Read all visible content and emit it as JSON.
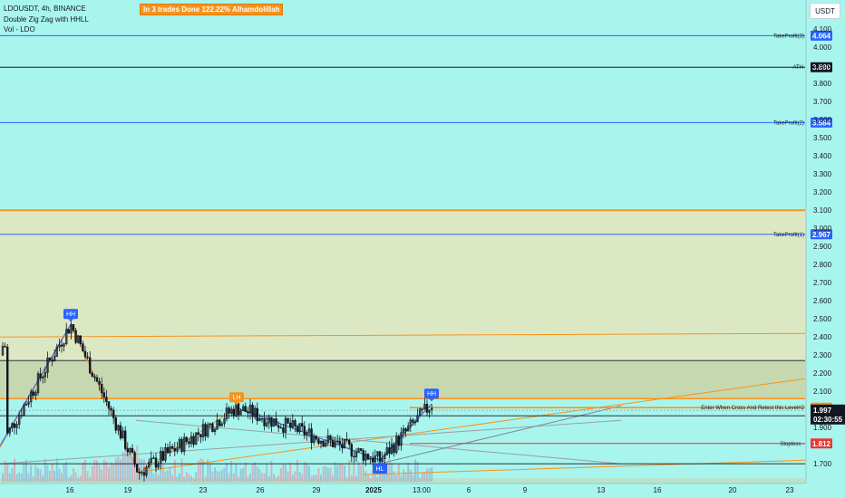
{
  "header": {
    "symbol_line": "LDOUSDT, 4h, BINANCE",
    "indicator_1": "Double Zig Zag with HHLL",
    "indicator_2": "Vol - LDO",
    "banner": "In 3 trades Done 122.22% Alhamdolillah",
    "currency": "USDT"
  },
  "colors": {
    "background": "#a8f5ee",
    "up": "#26a69a",
    "down": "#ef5350",
    "candle": "#131722",
    "takeprofit": "#2962ff",
    "stoploss": "#e53935",
    "orange": "#f7931a",
    "zone": "#dce8c4",
    "zone_dark": "#c6d8b0"
  },
  "chart_data": {
    "type": "candlestick",
    "ylim": [
      1.64,
      4.12
    ],
    "y_ticks": [
      "4.100",
      "4.000",
      "3.900",
      "3.800",
      "3.700",
      "3.600",
      "3.500",
      "3.400",
      "3.300",
      "3.200",
      "3.100",
      "3.000",
      "2.900",
      "2.800",
      "2.700",
      "2.600",
      "2.500",
      "2.400",
      "2.300",
      "2.200",
      "2.100",
      "1.900",
      "1.700"
    ],
    "x_ticks": [
      "16",
      "19",
      "23",
      "26",
      "29",
      "2025",
      "13:00",
      "6",
      "9",
      "13",
      "16",
      "20",
      "23"
    ],
    "x_ticks_bold": [
      "2025"
    ],
    "levels": [
      {
        "name": "TakeProfit(3)",
        "value": 4.064,
        "label": "4.064",
        "color": "#2962ff"
      },
      {
        "name": "ATH",
        "value": 3.89,
        "label": "3.890",
        "color": "#131722"
      },
      {
        "name": "TakeProfit(2)",
        "value": 3.584,
        "label": "3.584",
        "color": "#2962ff"
      },
      {
        "name": "TakeProfit(1)",
        "value": 2.967,
        "label": "2.967",
        "color": "#2962ff"
      },
      {
        "name": "Enter When Cross And Retest this Level#2",
        "value": 2.01,
        "label": "2.010",
        "color": "#f7931a"
      },
      {
        "name": "Stoploss",
        "value": 1.812,
        "label": "1.812",
        "color": "#e53935"
      }
    ],
    "last_price": {
      "value": 1.997,
      "label": "1.997",
      "countdown": "02:30:55"
    },
    "zone": {
      "top": 3.1,
      "bottom": 2.06
    },
    "zone_inner": {
      "top": 2.27,
      "bottom": 2.06
    },
    "markers": [
      {
        "text": "HH",
        "x": 78,
        "value": 2.47,
        "color": "#2962ff",
        "pos": "above"
      },
      {
        "text": "LH",
        "x": 261,
        "value": 2.01,
        "color": "#f7931a",
        "pos": "above"
      },
      {
        "text": "HL",
        "x": 419,
        "value": 1.72,
        "color": "#2962ff",
        "pos": "below"
      },
      {
        "text": "HH",
        "x": 476,
        "value": 2.03,
        "color": "#2962ff",
        "pos": "above"
      }
    ],
    "zigzag": [
      {
        "x": 0,
        "value": 1.79
      },
      {
        "x": 78,
        "value": 2.47
      },
      {
        "x": 153,
        "value": 1.65
      },
      {
        "x": 261,
        "value": 2.01
      },
      {
        "x": 419,
        "value": 1.72
      },
      {
        "x": 476,
        "value": 2.03
      }
    ],
    "trend_lines": [
      {
        "from": {
          "x": 0,
          "value": 2.4
        },
        "to": {
          "x": 888,
          "value": 2.42
        },
        "color": "#f7931a"
      },
      {
        "from": {
          "x": 160,
          "value": 1.66
        },
        "to": {
          "x": 888,
          "value": 2.17
        },
        "color": "#f7931a"
      },
      {
        "from": {
          "x": 400,
          "value": 1.64
        },
        "to": {
          "x": 888,
          "value": 1.72
        },
        "color": "#f7931a"
      },
      {
        "from": {
          "x": 0,
          "value": 1.7
        },
        "to": {
          "x": 685,
          "value": 1.94
        },
        "color": "#9e9e9e"
      },
      {
        "from": {
          "x": 150,
          "value": 1.94
        },
        "to": {
          "x": 685,
          "value": 1.7
        },
        "color": "#9e9e9e"
      },
      {
        "from": {
          "x": 410,
          "value": 1.69
        },
        "to": {
          "x": 685,
          "value": 2.02
        },
        "color": "#7b8aa0"
      },
      {
        "from": {
          "x": 0,
          "value": 1.965
        },
        "to": {
          "x": 888,
          "value": 1.965
        },
        "color": "#131722"
      },
      {
        "from": {
          "x": 0,
          "value": 2.27
        },
        "to": {
          "x": 888,
          "value": 2.27
        },
        "color": "#131722"
      },
      {
        "from": {
          "x": 0,
          "value": 1.7
        },
        "to": {
          "x": 888,
          "value": 1.7
        },
        "color": "#131722"
      }
    ]
  }
}
